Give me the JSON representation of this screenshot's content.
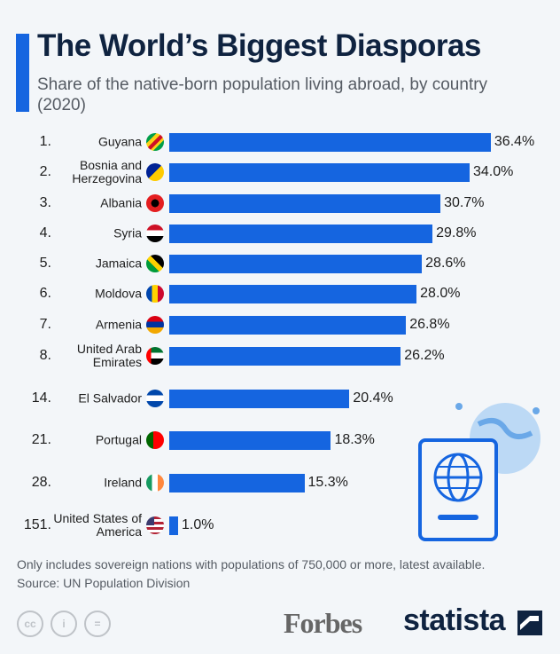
{
  "header": {
    "title": "The World’s Biggest Diasporas",
    "subtitle": "Share of the native-born population living abroad, by country (2020)"
  },
  "colors": {
    "bar": "#1565e0",
    "title": "#0f2340",
    "background": "#f3f6f9"
  },
  "chart_data": {
    "type": "bar",
    "orientation": "horizontal",
    "title": "The World’s Biggest Diasporas",
    "subtitle": "Share of the native-born population living abroad, by country (2020)",
    "unit": "%",
    "ranks": [
      "1.",
      "2.",
      "3.",
      "4.",
      "5.",
      "6.",
      "7.",
      "8.",
      "14.",
      "21.",
      "28.",
      "151."
    ],
    "categories": [
      "Guyana",
      "Bosnia and Herzegovina",
      "Albania",
      "Syria",
      "Jamaica",
      "Moldova",
      "Armenia",
      "United Arab Emirates",
      "El Salvador",
      "Portugal",
      "Ireland",
      "United States of America"
    ],
    "values": [
      36.4,
      34.0,
      30.7,
      29.8,
      28.6,
      28.0,
      26.8,
      26.2,
      20.4,
      18.3,
      15.3,
      1.0
    ],
    "labels": [
      "36.4%",
      "34.0%",
      "30.7%",
      "29.8%",
      "28.6%",
      "28.0%",
      "26.8%",
      "26.2%",
      "20.4%",
      "18.3%",
      "15.3%",
      "1.0%"
    ],
    "flag_icons": [
      "guyana-flag",
      "bosnia-flag",
      "albania-flag",
      "syria-flag",
      "jamaica-flag",
      "moldova-flag",
      "armenia-flag",
      "uae-flag",
      "el-salvador-flag",
      "portugal-flag",
      "ireland-flag",
      "usa-flag"
    ],
    "grid": false
  },
  "footer": {
    "note": "Only includes sovereign nations with populations of 750,000 or more, latest available.",
    "source": "Source: UN Population Division",
    "forbes": "Forbes",
    "statista": "statista"
  }
}
